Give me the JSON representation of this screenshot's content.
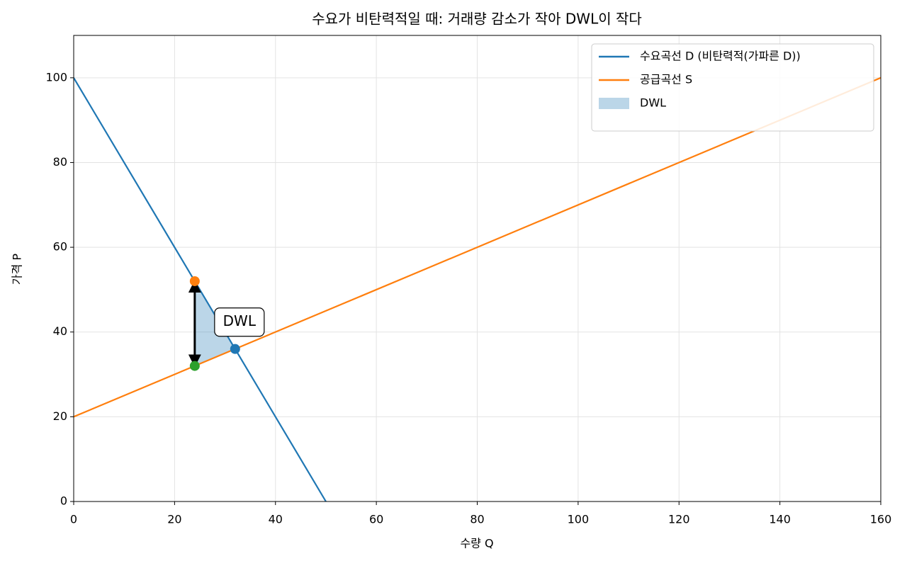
{
  "chart_data": {
    "type": "line",
    "title": "수요가 비탄력적일 때: 거래량 감소가 작아 DWL이 작다",
    "xlabel": "수량 Q",
    "ylabel": "가격 P",
    "xlim": [
      0,
      160
    ],
    "ylim": [
      0,
      110
    ],
    "xticks": [
      0,
      20,
      40,
      60,
      80,
      100,
      120,
      140,
      160
    ],
    "yticks": [
      0,
      20,
      40,
      60,
      80,
      100
    ],
    "grid": true,
    "legend": "upper right",
    "series": [
      {
        "name": "수요곡선 D (비탄력적(가파른 D))",
        "color": "#1f77b4",
        "x": [
          0,
          50
        ],
        "values": [
          100,
          0
        ]
      },
      {
        "name": "공급곡선 S",
        "color": "#ff7f0e",
        "x": [
          0,
          160
        ],
        "values": [
          20,
          100
        ]
      }
    ],
    "areas": [
      {
        "name": "DWL",
        "color": "#1f77b4",
        "alpha": 0.3,
        "x": [
          24,
          24,
          32
        ],
        "values": [
          52,
          32,
          36
        ]
      }
    ],
    "points": [
      {
        "color": "#ff7f0e",
        "x": 24,
        "y": 52
      },
      {
        "color": "#2ca02c",
        "x": 24,
        "y": 32
      },
      {
        "color": "#1f77b4",
        "x": 32,
        "y": 36
      }
    ],
    "arrow": {
      "color": "#000000",
      "x": [
        24,
        24
      ],
      "values": [
        52,
        32
      ]
    },
    "annotation": "DWL"
  }
}
